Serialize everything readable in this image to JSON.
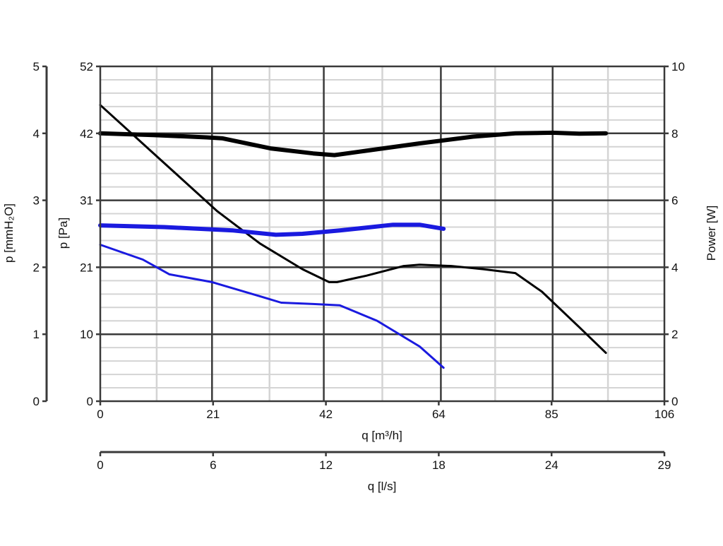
{
  "chart_data": {
    "type": "line",
    "title": "",
    "axes": {
      "x_primary": {
        "label": "q [m³/h]",
        "range": [
          0,
          106
        ],
        "ticks": [
          0,
          21,
          42,
          64,
          85,
          106
        ]
      },
      "x_secondary": {
        "label": "q [l/s]",
        "range": [
          0,
          29
        ],
        "ticks": [
          0,
          6,
          12,
          18,
          24,
          29
        ]
      },
      "y_left_outer": {
        "label": "p [mmH₂O]",
        "range": [
          0,
          5
        ],
        "ticks": [
          0,
          1,
          2,
          3,
          4,
          5
        ]
      },
      "y_left_inner": {
        "label": "p [Pa]",
        "range": [
          0,
          52
        ],
        "ticks": [
          0,
          10,
          21,
          31,
          42,
          52
        ]
      },
      "y_right": {
        "label": "Power [W]",
        "range": [
          0,
          10
        ],
        "ticks": [
          0,
          2,
          4,
          6,
          8,
          10
        ]
      }
    },
    "grid": true,
    "series": [
      {
        "axis": "pressure",
        "color": "#000000",
        "weight": "thin",
        "points": [
          [
            0,
            46
          ],
          [
            10,
            38.5
          ],
          [
            22,
            29.5
          ],
          [
            30,
            24.5
          ],
          [
            38,
            20.5
          ],
          [
            43,
            18.5
          ],
          [
            44.5,
            18.5
          ],
          [
            50,
            19.5
          ],
          [
            57,
            21
          ],
          [
            60,
            21.2
          ],
          [
            66,
            21
          ],
          [
            72,
            20.5
          ],
          [
            78,
            19.9
          ],
          [
            83,
            17
          ],
          [
            90,
            11.5
          ],
          [
            95,
            7.5
          ]
        ]
      },
      {
        "axis": "power",
        "color": "#000000",
        "weight": "thick",
        "points": [
          [
            0,
            8.0
          ],
          [
            10,
            7.95
          ],
          [
            20,
            7.88
          ],
          [
            23,
            7.85
          ],
          [
            32,
            7.55
          ],
          [
            40,
            7.4
          ],
          [
            44,
            7.35
          ],
          [
            50,
            7.48
          ],
          [
            60,
            7.7
          ],
          [
            70,
            7.9
          ],
          [
            78,
            8.0
          ],
          [
            85,
            8.02
          ],
          [
            90,
            7.99
          ],
          [
            95,
            8.0
          ]
        ]
      },
      {
        "axis": "pressure",
        "color": "#1a1adf",
        "weight": "thin",
        "points": [
          [
            0,
            24.3
          ],
          [
            8,
            22
          ],
          [
            13,
            19.7
          ],
          [
            21,
            18.5
          ],
          [
            30,
            16.3
          ],
          [
            34,
            15.3
          ],
          [
            40,
            15.1
          ],
          [
            45,
            14.9
          ],
          [
            52,
            12.5
          ],
          [
            60,
            8.5
          ],
          [
            64.5,
            5.2
          ]
        ]
      },
      {
        "axis": "power",
        "color": "#1a1adf",
        "weight": "thick",
        "points": [
          [
            0,
            5.25
          ],
          [
            12,
            5.2
          ],
          [
            25,
            5.1
          ],
          [
            33,
            4.97
          ],
          [
            38,
            5.0
          ],
          [
            45,
            5.1
          ],
          [
            55,
            5.27
          ],
          [
            60,
            5.27
          ],
          [
            64.5,
            5.15
          ]
        ]
      }
    ]
  }
}
